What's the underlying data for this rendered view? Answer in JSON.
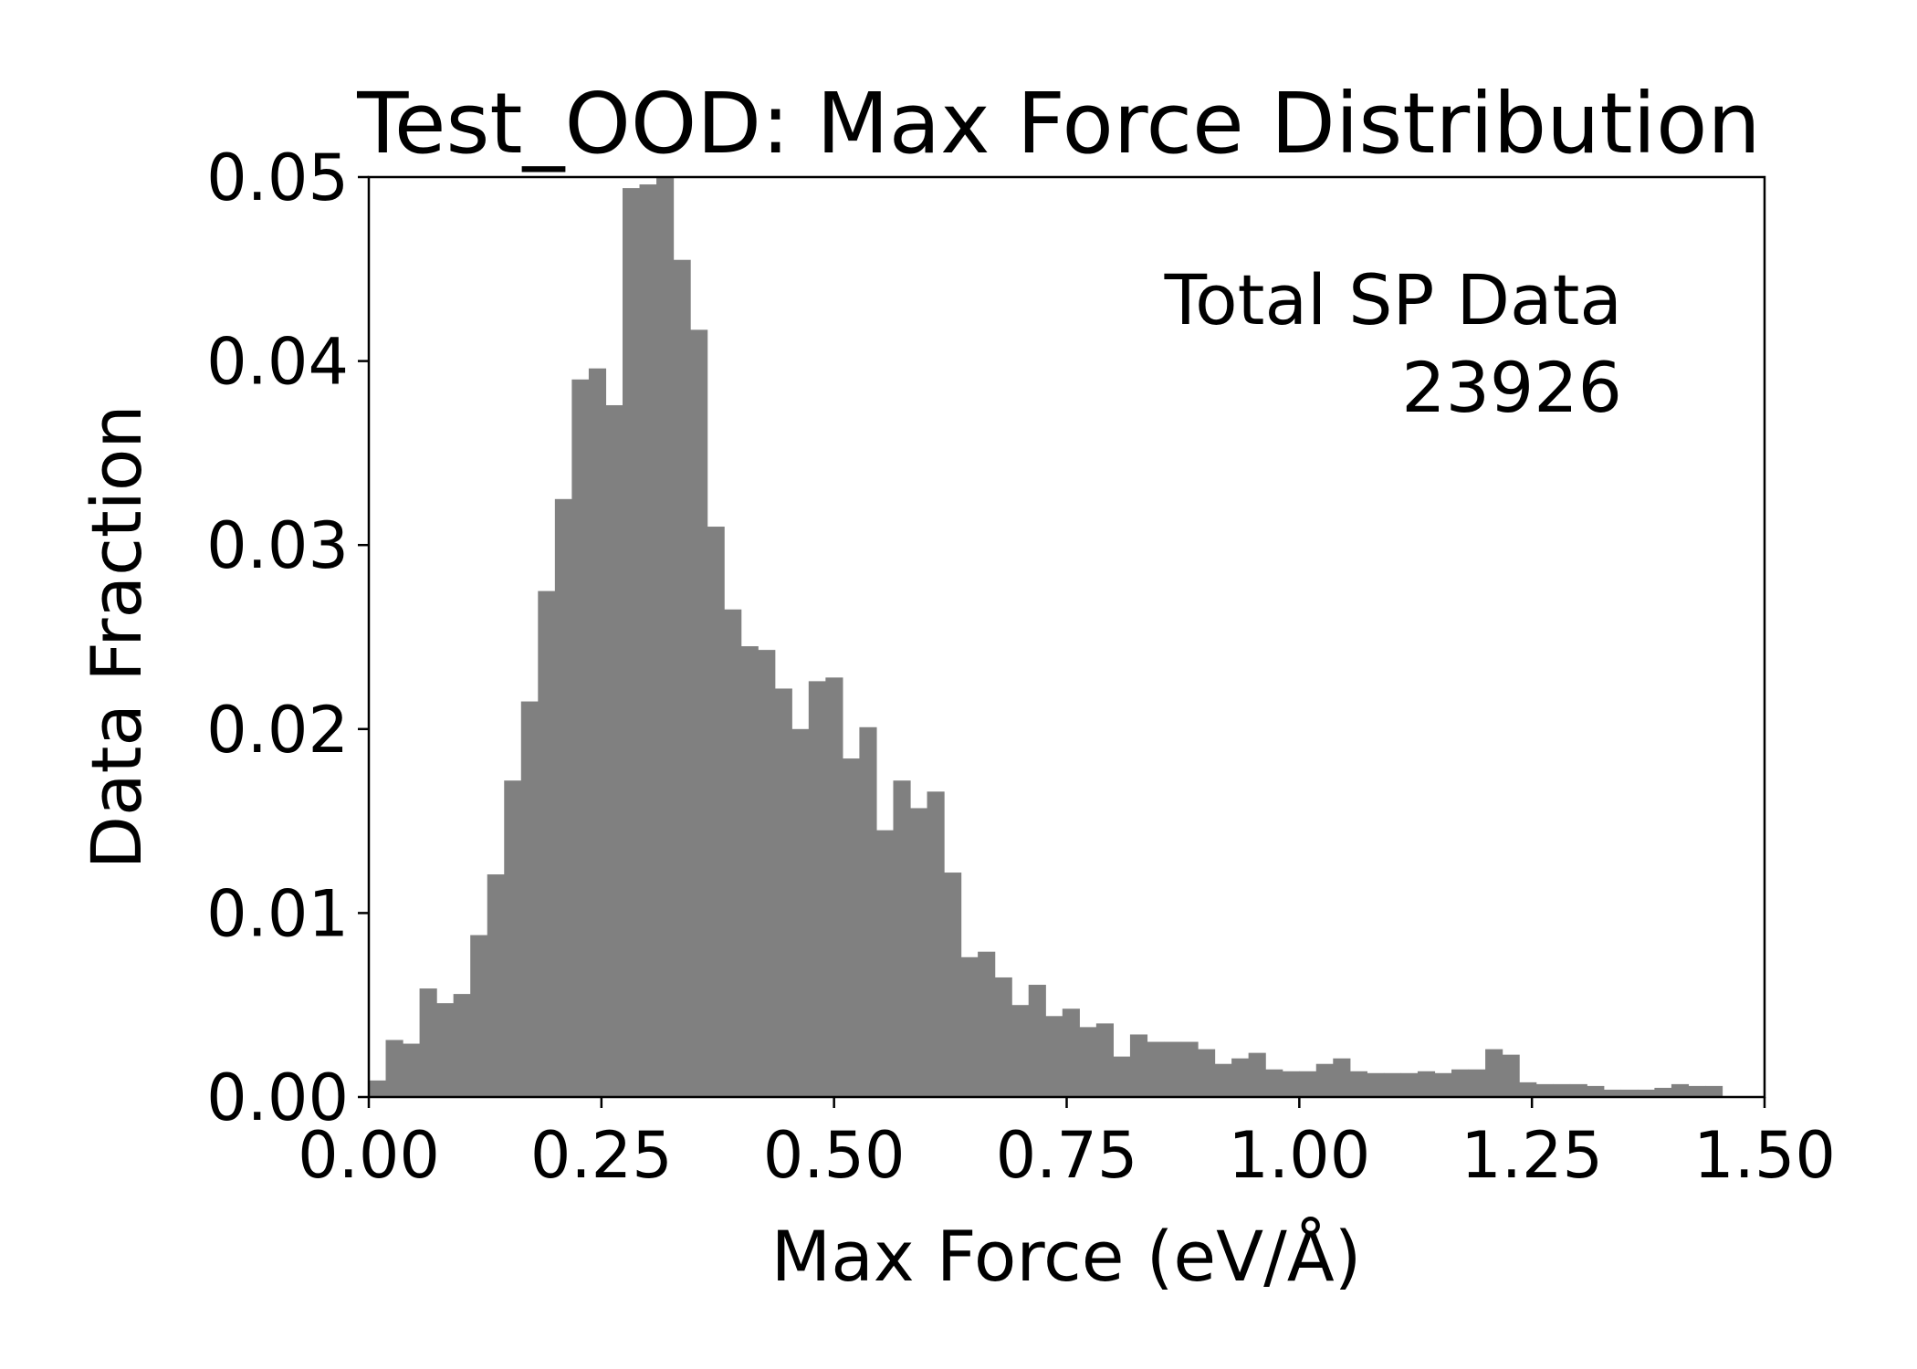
{
  "chart_data": {
    "type": "bar",
    "title": "Test_OOD: Max Force Distribution",
    "xlabel": "Max Force (eV/Å)",
    "ylabel": "Data Fraction",
    "xlim": [
      0,
      1.5
    ],
    "ylim": [
      0,
      0.05
    ],
    "xticks": [
      "0.00",
      "0.25",
      "0.50",
      "0.75",
      "1.00",
      "1.25",
      "1.50"
    ],
    "yticks": [
      "0.00",
      "0.01",
      "0.02",
      "0.03",
      "0.04",
      "0.05"
    ],
    "bin_width": 0.01818,
    "annotation": {
      "label": "Total SP Data",
      "value": "23926"
    },
    "bar_color": "#808080",
    "grid": false,
    "values": [
      0.0009,
      0.0031,
      0.0029,
      0.0059,
      0.0051,
      0.0056,
      0.0088,
      0.0121,
      0.0172,
      0.0215,
      0.0275,
      0.0325,
      0.039,
      0.0396,
      0.0376,
      0.0494,
      0.0496,
      0.05,
      0.0455,
      0.0417,
      0.031,
      0.0265,
      0.0245,
      0.0243,
      0.0222,
      0.02,
      0.0226,
      0.0228,
      0.0184,
      0.0201,
      0.0145,
      0.0172,
      0.0157,
      0.0166,
      0.0122,
      0.0076,
      0.0079,
      0.0065,
      0.005,
      0.0061,
      0.0044,
      0.0048,
      0.0038,
      0.004,
      0.0022,
      0.0034,
      0.003,
      0.003,
      0.003,
      0.0026,
      0.0018,
      0.0021,
      0.0024,
      0.0015,
      0.0014,
      0.0014,
      0.0018,
      0.0021,
      0.0014,
      0.0013,
      0.0013,
      0.0013,
      0.0014,
      0.0013,
      0.0015,
      0.0015,
      0.0026,
      0.0023,
      0.0008,
      0.0007,
      0.0007,
      0.0007,
      0.0006,
      0.0004,
      0.0004,
      0.0004,
      0.0005,
      0.0007,
      0.0006,
      0.0006
    ]
  }
}
